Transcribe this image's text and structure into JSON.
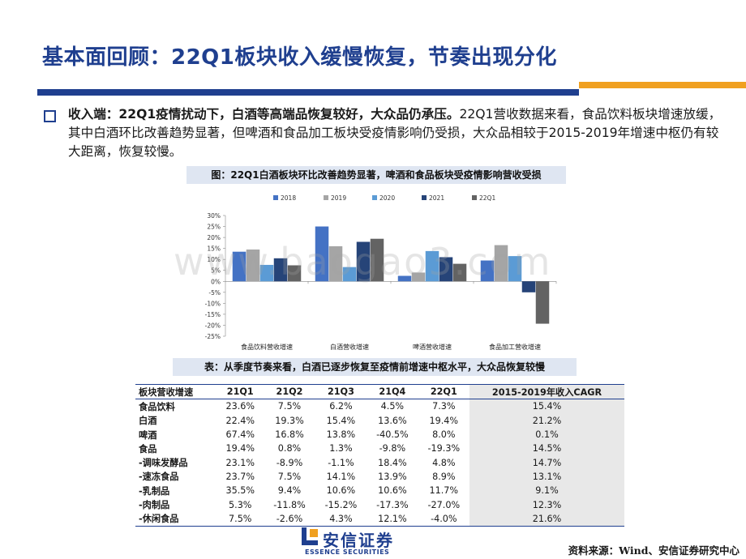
{
  "title": "基本面回顾：22Q1板块收入缓慢恢复，节奏出现分化",
  "paragraph": {
    "bold_part": "收入端：22Q1疫情扰动下，白酒等高端品恢复较好，大众品仍承压。",
    "normal_part": "22Q1营收数据来看，食品饮料板块增速放缓，其中白酒环比改善趋势显著，但啤酒和食品加工板块受疫情影响仍受损，大众品相较于2015-2019年增速中枢仍有较大距离，恢复较慢。"
  },
  "figure_caption": "图：22Q1白酒板块环比改善趋势显著，啤酒和食品板块受疫情影响营收受损",
  "table_caption": "表：从季度节奏来看，白酒已逐步恢复至疫情前增速中枢水平，大众品恢复较慢",
  "watermark": "www.baogao3.com",
  "chart_data": {
    "type": "bar",
    "categories": [
      "食品饮料营收增速",
      "白酒营收增速",
      "啤酒营收增速",
      "食品加工营收增速"
    ],
    "series": [
      {
        "name": "2018",
        "color": "#4472c4",
        "values": [
          13.5,
          25.0,
          2.5,
          9.5
        ]
      },
      {
        "name": "2019",
        "color": "#a5a5a5",
        "values": [
          14.5,
          16.0,
          4.0,
          16.5
        ]
      },
      {
        "name": "2020",
        "color": "#5b9bd5",
        "values": [
          7.5,
          6.5,
          13.8,
          11.5
        ]
      },
      {
        "name": "2021",
        "color": "#264478",
        "values": [
          10.5,
          18.0,
          11.0,
          -5.0
        ]
      },
      {
        "name": "22Q1",
        "color": "#636363",
        "values": [
          7.3,
          19.4,
          8.0,
          -19.3
        ]
      }
    ],
    "ylim": [
      -25,
      30
    ],
    "yticks": [
      "30%",
      "25%",
      "20%",
      "15%",
      "10%",
      "5%",
      "0%",
      "-5%",
      "-10%",
      "-15%",
      "-20%",
      "-25%"
    ],
    "legend_position": "top"
  },
  "table": {
    "headers": [
      "板块营收增速",
      "21Q1",
      "21Q2",
      "21Q3",
      "21Q4",
      "22Q1",
      "2015-2019年收入CAGR"
    ],
    "rows": [
      [
        "食品饮料",
        "23.6%",
        "7.5%",
        "6.2%",
        "4.5%",
        "7.3%",
        "15.4%"
      ],
      [
        "白酒",
        "22.4%",
        "19.3%",
        "15.4%",
        "13.6%",
        "19.4%",
        "21.2%"
      ],
      [
        "啤酒",
        "67.4%",
        "16.8%",
        "13.8%",
        "-40.5%",
        "8.0%",
        "0.1%"
      ],
      [
        "食品",
        "19.4%",
        "0.8%",
        "1.3%",
        "-9.8%",
        "-19.3%",
        "14.5%"
      ],
      [
        "-调味发酵品",
        "23.1%",
        "-8.9%",
        "-1.1%",
        "18.4%",
        "4.8%",
        "14.7%"
      ],
      [
        "-速冻食品",
        "23.7%",
        "7.5%",
        "14.1%",
        "13.9%",
        "8.9%",
        "13.1%"
      ],
      [
        "-乳制品",
        "35.5%",
        "9.4%",
        "10.6%",
        "10.6%",
        "11.7%",
        "9.1%"
      ],
      [
        "-肉制品",
        "5.3%",
        "-11.8%",
        "-15.2%",
        "-17.3%",
        "-27.0%",
        "12.3%"
      ],
      [
        "-休闲食品",
        "7.5%",
        "-2.6%",
        "4.3%",
        "12.1%",
        "-4.0%",
        "21.6%"
      ]
    ]
  },
  "logo": {
    "cn": "安信证券",
    "en": "ESSENCE SECURITIES"
  },
  "source": "资料来源：Wind、安信证券研究中心",
  "colors": {
    "brand_blue": "#1f3f8f",
    "accent_orange": "#f0a020"
  }
}
